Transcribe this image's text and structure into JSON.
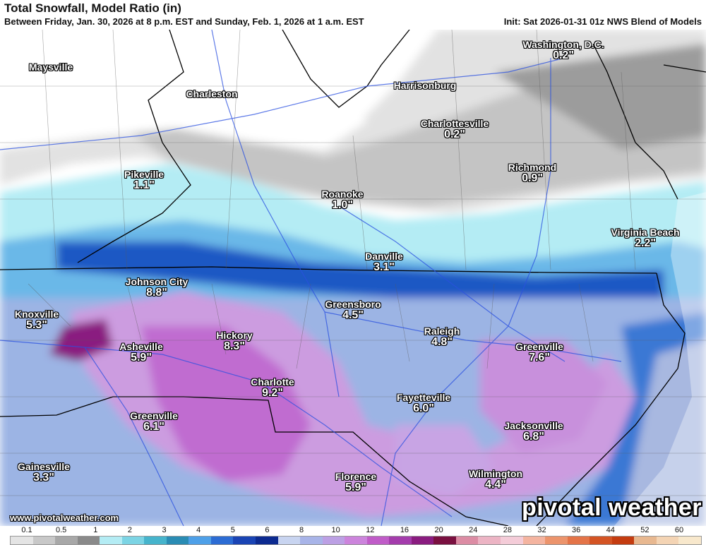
{
  "header": {
    "title": "Total Snowfall, Model Ratio (in)",
    "subtitle": "Between Friday, Jan. 30, 2026 at 8 p.m. EST and Sunday, Feb. 1, 2026 at 1 a.m. EST",
    "init": "Init: Sat 2026-01-31 01z NWS Blend of Models"
  },
  "cities": [
    {
      "name": "Maysville",
      "value": ""
    },
    {
      "name": "Charleston",
      "value": ""
    },
    {
      "name": "Harrisonburg",
      "value": ""
    },
    {
      "name": "Washington, D.C.",
      "value": "0.2\""
    },
    {
      "name": "Charlottesville",
      "value": "0.2\""
    },
    {
      "name": "Pikeville",
      "value": "1.1\""
    },
    {
      "name": "Roanoke",
      "value": "1.0\""
    },
    {
      "name": "Richmond",
      "value": "0.9\""
    },
    {
      "name": "Virginia Beach",
      "value": "2.2\""
    },
    {
      "name": "Danville",
      "value": "3.1\""
    },
    {
      "name": "Johnson City",
      "value": "8.8\""
    },
    {
      "name": "Knoxville",
      "value": "5.3\""
    },
    {
      "name": "Greensboro",
      "value": "4.5\""
    },
    {
      "name": "Raleigh",
      "value": "4.8\""
    },
    {
      "name": "Hickory",
      "value": "8.3\""
    },
    {
      "name": "Asheville",
      "value": "5.9\""
    },
    {
      "name": "Greenville",
      "value": "7.6\""
    },
    {
      "name": "Charlotte",
      "value": "9.2\""
    },
    {
      "name": "Fayetteville",
      "value": "6.0\""
    },
    {
      "name": "Greenville",
      "value": "6.1\""
    },
    {
      "name": "Jacksonville",
      "value": "6.8\""
    },
    {
      "name": "Gainesville",
      "value": "3.3\""
    },
    {
      "name": "Florence",
      "value": "5.9\""
    },
    {
      "name": "Wilmington",
      "value": "4.4\""
    }
  ],
  "branding": {
    "logo": "pivotal weather",
    "site": "www.pivotalweather.com"
  },
  "legend": {
    "ticks": [
      "0.1",
      "0.5",
      "1",
      "2",
      "3",
      "4",
      "5",
      "6",
      "8",
      "10",
      "12",
      "16",
      "20",
      "24",
      "28",
      "32",
      "36",
      "44",
      "52",
      "60"
    ],
    "colors": [
      "#e4e4e4",
      "#c8c8c8",
      "#a8a8a8",
      "#8a8a8a",
      "#b4ecf4",
      "#7cd4e4",
      "#46b4cc",
      "#2a8cb4",
      "#4ea0e8",
      "#2c6cd4",
      "#1a44b4",
      "#0c2a90",
      "#c8d4f0",
      "#a8b4e8",
      "#bca0e4",
      "#cc84dc",
      "#c05cc8",
      "#a43cac",
      "#8a1c80",
      "#7a1040",
      "#dc8ca4",
      "#ecb4c4",
      "#f4ccd8",
      "#f4b4a0",
      "#ec946c",
      "#e47448",
      "#d45424",
      "#c43c10",
      "#e8b890",
      "#f4d4b4",
      "#f8e8cc"
    ]
  }
}
